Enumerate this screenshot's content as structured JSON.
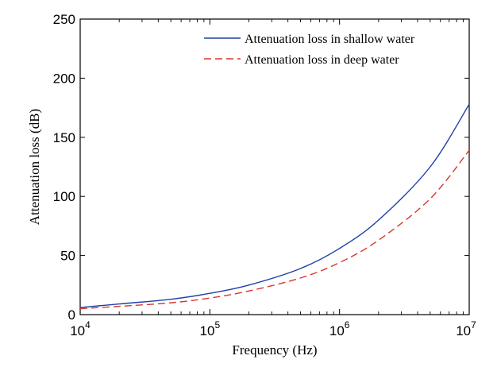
{
  "chart_data": {
    "type": "line",
    "title": "",
    "xlabel": "Frequency (Hz)",
    "ylabel": "Attenuation loss (dB)",
    "xscale": "log",
    "xlim": [
      10000,
      10000000
    ],
    "ylim": [
      0,
      250
    ],
    "x_ticks": [
      {
        "value": 10000,
        "base": "10",
        "exp": "4"
      },
      {
        "value": 100000,
        "base": "10",
        "exp": "5"
      },
      {
        "value": 1000000,
        "base": "10",
        "exp": "6"
      },
      {
        "value": 10000000,
        "base": "10",
        "exp": "7"
      }
    ],
    "y_ticks": [
      {
        "value": 0,
        "label": "0"
      },
      {
        "value": 50,
        "label": "50"
      },
      {
        "value": 100,
        "label": "100"
      },
      {
        "value": 150,
        "label": "150"
      },
      {
        "value": 200,
        "label": "200"
      },
      {
        "value": 250,
        "label": "250"
      }
    ],
    "grid": false,
    "legend_position": "top-right",
    "series": [
      {
        "name": "Attenuation loss in shallow water",
        "color": "#1f3fa8",
        "dash": "solid",
        "x": [
          10000,
          20000,
          50000,
          100000,
          200000,
          500000,
          1000000,
          2000000,
          5000000,
          10000000
        ],
        "y": [
          6,
          9,
          13,
          18,
          25,
          39,
          56,
          80,
          125,
          178
        ]
      },
      {
        "name": "Attenuation loss in deep water",
        "color": "#d9362b",
        "dash": "dashed",
        "x": [
          10000,
          20000,
          50000,
          100000,
          200000,
          500000,
          1000000,
          2000000,
          5000000,
          10000000
        ],
        "y": [
          5,
          7,
          10,
          14,
          20,
          31,
          44,
          63,
          98,
          139
        ]
      }
    ]
  }
}
